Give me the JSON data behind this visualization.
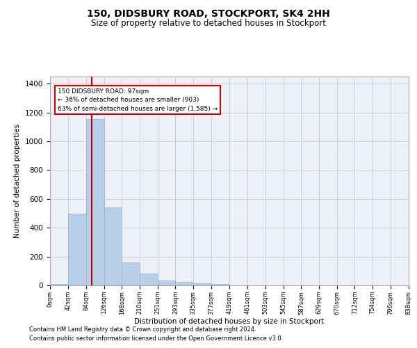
{
  "title": "150, DIDSBURY ROAD, STOCKPORT, SK4 2HH",
  "subtitle": "Size of property relative to detached houses in Stockport",
  "xlabel": "Distribution of detached houses by size in Stockport",
  "ylabel": "Number of detached properties",
  "footnote1": "Contains HM Land Registry data © Crown copyright and database right 2024.",
  "footnote2": "Contains public sector information licensed under the Open Government Licence v3.0.",
  "bar_color": "#b8cfe8",
  "bar_edge_color": "#96b4d8",
  "grid_color": "#c8c8d8",
  "bg_color": "#eef0f8",
  "annotation_box_color": "#cc0000",
  "vline_color": "#cc0000",
  "bin_edges": [
    0,
    42,
    84,
    126,
    168,
    210,
    251,
    293,
    335,
    377,
    419,
    461,
    503,
    545,
    587,
    629,
    670,
    712,
    754,
    796,
    838
  ],
  "bar_heights": [
    10,
    500,
    1155,
    540,
    160,
    80,
    33,
    25,
    15,
    8,
    0,
    0,
    0,
    0,
    0,
    0,
    0,
    0,
    0,
    0
  ],
  "property_size": 97,
  "property_label": "150 DIDSBURY ROAD: 97sqm",
  "pct_smaller": "36% of detached houses are smaller (903)",
  "pct_larger": "63% of semi-detached houses are larger (1,585)",
  "ylim": [
    0,
    1450
  ],
  "yticks": [
    0,
    200,
    400,
    600,
    800,
    1000,
    1200,
    1400
  ],
  "xtick_labels": [
    "0sqm",
    "42sqm",
    "84sqm",
    "126sqm",
    "168sqm",
    "210sqm",
    "251sqm",
    "293sqm",
    "335sqm",
    "377sqm",
    "419sqm",
    "461sqm",
    "503sqm",
    "545sqm",
    "587sqm",
    "629sqm",
    "670sqm",
    "712sqm",
    "754sqm",
    "796sqm",
    "838sqm"
  ]
}
